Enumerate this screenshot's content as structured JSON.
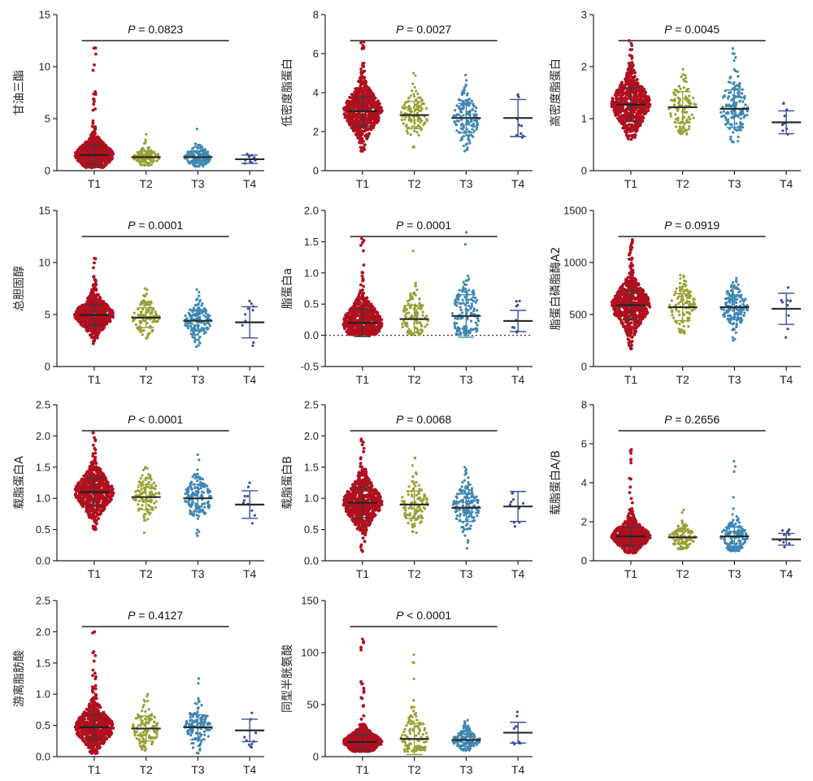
{
  "figure": {
    "colors": [
      "#b0101f",
      "#9aa032",
      "#3f87b4",
      "#3a4f9a"
    ],
    "categories": [
      "T1",
      "T2",
      "T3",
      "T4"
    ]
  },
  "chart_data": [
    {
      "type": "scatter",
      "ylabel": "甘油三酯",
      "p_prefix": "P",
      "p_text": " = 0.0823",
      "ylim": [
        0,
        15
      ],
      "yticks": [
        0,
        5,
        10,
        15
      ],
      "zero_line": false,
      "groups": [
        {
          "name": "T1",
          "mean": 1.5,
          "sd": 0.9,
          "min": 0.3,
          "max": 11.8,
          "n": 650
        },
        {
          "name": "T2",
          "mean": 1.3,
          "sd": 0.5,
          "min": 0.5,
          "max": 3.5,
          "n": 110
        },
        {
          "name": "T3",
          "mean": 1.3,
          "sd": 0.6,
          "min": 0.4,
          "max": 4.0,
          "n": 150
        },
        {
          "name": "T4",
          "mean": 1.1,
          "sd": 0.4,
          "min": 0.7,
          "max": 1.6,
          "n": 8
        }
      ]
    },
    {
      "type": "scatter",
      "ylabel": "低密度脂蛋白",
      "p_prefix": "P",
      "p_text": " = 0.0027",
      "ylim": [
        0,
        8
      ],
      "yticks": [
        0,
        2,
        4,
        6,
        8
      ],
      "zero_line": false,
      "groups": [
        {
          "name": "T1",
          "mean": 3.05,
          "sd": 0.75,
          "min": 1.0,
          "max": 6.6,
          "n": 650
        },
        {
          "name": "T2",
          "mean": 2.85,
          "sd": 0.7,
          "min": 1.2,
          "max": 5.0,
          "n": 110
        },
        {
          "name": "T3",
          "mean": 2.7,
          "sd": 0.75,
          "min": 1.0,
          "max": 4.9,
          "n": 150
        },
        {
          "name": "T4",
          "mean": 2.7,
          "sd": 0.95,
          "min": 1.7,
          "max": 3.9,
          "n": 8
        }
      ]
    },
    {
      "type": "scatter",
      "ylabel": "高密度脂蛋白",
      "p_prefix": "P",
      "p_text": " = 0.0045",
      "ylim": [
        0,
        3
      ],
      "yticks": [
        0,
        1,
        2,
        3
      ],
      "zero_line": false,
      "groups": [
        {
          "name": "T1",
          "mean": 1.27,
          "sd": 0.32,
          "min": 0.6,
          "max": 2.5,
          "n": 650
        },
        {
          "name": "T2",
          "mean": 1.22,
          "sd": 0.3,
          "min": 0.7,
          "max": 1.95,
          "n": 110
        },
        {
          "name": "T3",
          "mean": 1.19,
          "sd": 0.36,
          "min": 0.55,
          "max": 2.35,
          "n": 150
        },
        {
          "name": "T4",
          "mean": 0.93,
          "sd": 0.22,
          "min": 0.7,
          "max": 1.3,
          "n": 8
        }
      ]
    },
    {
      "type": "scatter",
      "ylabel": "总胆固醇",
      "p_prefix": "P",
      "p_text": " =  0.0001",
      "ylim": [
        0,
        15
      ],
      "yticks": [
        0,
        5,
        10,
        15
      ],
      "zero_line": false,
      "groups": [
        {
          "name": "T1",
          "mean": 4.95,
          "sd": 1.0,
          "min": 2.2,
          "max": 10.4,
          "n": 650
        },
        {
          "name": "T2",
          "mean": 4.7,
          "sd": 0.95,
          "min": 2.7,
          "max": 7.5,
          "n": 110
        },
        {
          "name": "T3",
          "mean": 4.4,
          "sd": 1.0,
          "min": 1.9,
          "max": 7.4,
          "n": 150
        },
        {
          "name": "T4",
          "mean": 4.25,
          "sd": 1.5,
          "min": 2.0,
          "max": 6.3,
          "n": 8
        }
      ]
    },
    {
      "type": "scatter",
      "ylabel": "脂蛋白a",
      "p_prefix": "P",
      "p_text": " = 0.0001",
      "ylim": [
        -0.5,
        2.0
      ],
      "yticks": [
        -0.5,
        0.0,
        0.5,
        1.0,
        1.5,
        2.0
      ],
      "zero_line": true,
      "groups": [
        {
          "name": "T1",
          "mean": 0.2,
          "sd": 0.22,
          "min": 0.01,
          "max": 1.55,
          "n": 650
        },
        {
          "name": "T2",
          "mean": 0.26,
          "sd": 0.22,
          "min": 0.01,
          "max": 1.35,
          "n": 110
        },
        {
          "name": "T3",
          "mean": 0.31,
          "sd": 0.34,
          "min": 0.01,
          "max": 1.65,
          "n": 150
        },
        {
          "name": "T4",
          "mean": 0.23,
          "sd": 0.17,
          "min": 0.05,
          "max": 0.55,
          "n": 8
        }
      ]
    },
    {
      "type": "scatter",
      "ylabel": "脂蛋白磷脂酶A2",
      "p_prefix": "P",
      "p_text": " = 0.0919",
      "ylim": [
        0,
        1500
      ],
      "yticks": [
        0,
        500,
        1000,
        1500
      ],
      "zero_line": false,
      "groups": [
        {
          "name": "T1",
          "mean": 590,
          "sd": 140,
          "min": 170,
          "max": 1220,
          "n": 650
        },
        {
          "name": "T2",
          "mean": 570,
          "sd": 130,
          "min": 320,
          "max": 880,
          "n": 110
        },
        {
          "name": "T3",
          "mean": 570,
          "sd": 120,
          "min": 250,
          "max": 850,
          "n": 150
        },
        {
          "name": "T4",
          "mean": 555,
          "sd": 150,
          "min": 280,
          "max": 760,
          "n": 8
        }
      ]
    },
    {
      "type": "scatter",
      "ylabel": "载脂蛋白A",
      "p_prefix": "P",
      "p_text": " < 0.0001",
      "ylim": [
        0,
        2.5
      ],
      "yticks": [
        0.0,
        0.5,
        1.0,
        1.5,
        2.0,
        2.5
      ],
      "zero_line": false,
      "groups": [
        {
          "name": "T1",
          "mean": 1.1,
          "sd": 0.22,
          "min": 0.5,
          "max": 2.05,
          "n": 650
        },
        {
          "name": "T2",
          "mean": 1.02,
          "sd": 0.2,
          "min": 0.45,
          "max": 1.5,
          "n": 110
        },
        {
          "name": "T3",
          "mean": 1.0,
          "sd": 0.22,
          "min": 0.4,
          "max": 1.7,
          "n": 150
        },
        {
          "name": "T4",
          "mean": 0.9,
          "sd": 0.22,
          "min": 0.6,
          "max": 1.25,
          "n": 8
        }
      ]
    },
    {
      "type": "scatter",
      "ylabel": "载脂蛋白B",
      "p_prefix": "P",
      "p_text": " = 0.0068",
      "ylim": [
        0,
        2.5
      ],
      "yticks": [
        0.0,
        0.5,
        1.0,
        1.5,
        2.0,
        2.5
      ],
      "zero_line": false,
      "groups": [
        {
          "name": "T1",
          "mean": 0.93,
          "sd": 0.24,
          "min": 0.15,
          "max": 1.95,
          "n": 650
        },
        {
          "name": "T2",
          "mean": 0.9,
          "sd": 0.22,
          "min": 0.45,
          "max": 1.65,
          "n": 110
        },
        {
          "name": "T3",
          "mean": 0.85,
          "sd": 0.22,
          "min": 0.2,
          "max": 1.5,
          "n": 150
        },
        {
          "name": "T4",
          "mean": 0.87,
          "sd": 0.24,
          "min": 0.55,
          "max": 1.1,
          "n": 8
        }
      ]
    },
    {
      "type": "scatter",
      "ylabel": "载脂蛋白A/B",
      "p_prefix": "P",
      "p_text": " = 0.2656",
      "ylim": [
        0,
        8
      ],
      "yticks": [
        0,
        2,
        4,
        6,
        8
      ],
      "zero_line": false,
      "groups": [
        {
          "name": "T1",
          "mean": 1.25,
          "sd": 0.45,
          "min": 0.4,
          "max": 5.7,
          "n": 650
        },
        {
          "name": "T2",
          "mean": 1.2,
          "sd": 0.35,
          "min": 0.6,
          "max": 2.6,
          "n": 110
        },
        {
          "name": "T3",
          "mean": 1.25,
          "sd": 0.5,
          "min": 0.5,
          "max": 5.1,
          "n": 150
        },
        {
          "name": "T4",
          "mean": 1.1,
          "sd": 0.3,
          "min": 0.7,
          "max": 1.6,
          "n": 8
        }
      ]
    },
    {
      "type": "scatter",
      "ylabel": "游离脂肪酸",
      "p_prefix": "P",
      "p_text": " = 0.4127",
      "ylim": [
        0,
        2.5
      ],
      "yticks": [
        0.0,
        0.5,
        1.0,
        1.5,
        2.0,
        2.5
      ],
      "zero_line": false,
      "groups": [
        {
          "name": "T1",
          "mean": 0.47,
          "sd": 0.2,
          "min": 0.05,
          "max": 2.0,
          "n": 650
        },
        {
          "name": "T2",
          "mean": 0.45,
          "sd": 0.2,
          "min": 0.1,
          "max": 1.0,
          "n": 110
        },
        {
          "name": "T3",
          "mean": 0.47,
          "sd": 0.2,
          "min": 0.05,
          "max": 1.25,
          "n": 150
        },
        {
          "name": "T4",
          "mean": 0.42,
          "sd": 0.18,
          "min": 0.15,
          "max": 0.7,
          "n": 8
        }
      ]
    },
    {
      "type": "scatter",
      "ylabel": "同型半胱氨酸",
      "p_prefix": "P",
      "p_text": " < 0.0001",
      "ylim": [
        0,
        150
      ],
      "yticks": [
        0,
        50,
        100,
        150
      ],
      "zero_line": false,
      "groups": [
        {
          "name": "T1",
          "mean": 14,
          "sd": 7,
          "min": 5,
          "max": 113,
          "n": 650
        },
        {
          "name": "T2",
          "mean": 17,
          "sd": 15,
          "min": 5,
          "max": 98,
          "n": 110
        },
        {
          "name": "T3",
          "mean": 16,
          "sd": 6,
          "min": 6,
          "max": 35,
          "n": 150
        },
        {
          "name": "T4",
          "mean": 23,
          "sd": 10,
          "min": 12,
          "max": 43,
          "n": 8
        }
      ]
    }
  ]
}
